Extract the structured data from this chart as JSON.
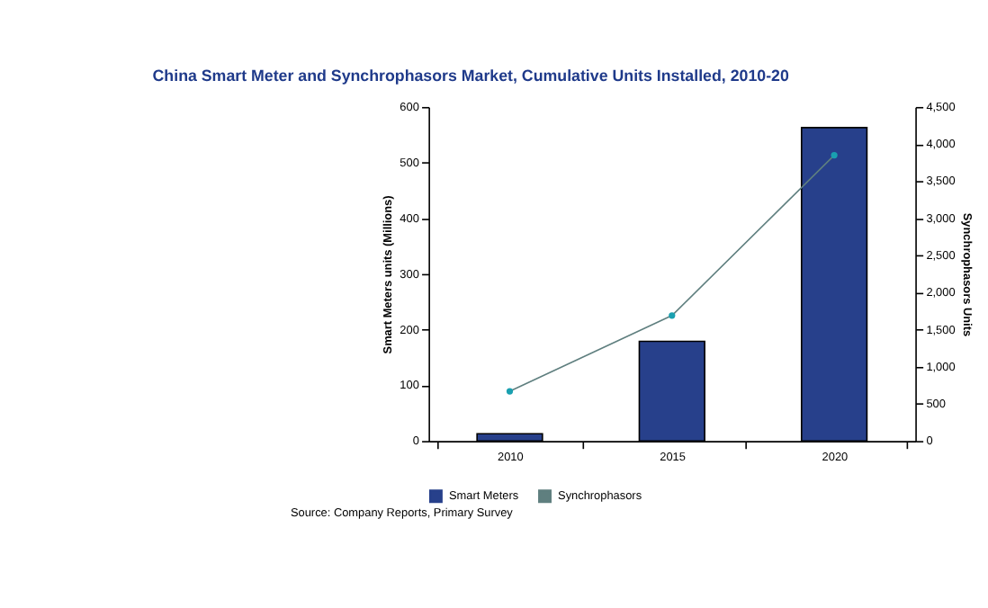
{
  "chart_data": {
    "type": "bar",
    "title": "China Smart Meter and Synchrophasors Market, Cumulative Units Installed, 2010-20",
    "categories": [
      "2010",
      "2015",
      "2020"
    ],
    "series": [
      {
        "name": "Smart Meters",
        "color": "#27408b",
        "values": [
          13,
          179,
          563
        ]
      },
      {
        "name": "Synchrophasors",
        "type": "line",
        "axis": "y2",
        "color": "#5f7f7f",
        "marker": "circle",
        "values": [
          670,
          1690,
          3850
        ]
      }
    ],
    "ylabel": "Smart Meters units (Millions)",
    "y2label": "Synchrophasors Units",
    "ylim": [
      0,
      600
    ],
    "yticks": [
      0,
      100,
      200,
      300,
      400,
      500,
      600
    ],
    "y2lim": [
      0,
      4500
    ],
    "y2ticks": [
      0,
      500,
      {
        "value": 1000,
        "label": "1,000"
      },
      {
        "value": 1500,
        "label": "1,500"
      },
      {
        "value": 2000,
        "label": "2,000"
      },
      {
        "value": 2500,
        "label": "2,500"
      },
      {
        "value": 3000,
        "label": "3,000"
      },
      {
        "value": 3500,
        "label": "3,500"
      },
      {
        "value": 4000,
        "label": "4,000"
      },
      {
        "value": 4500,
        "label": "4,500"
      }
    ],
    "grid": false,
    "legend": "bottom",
    "annotations": [
      "Source: Company Reports, Primary Survey"
    ]
  }
}
